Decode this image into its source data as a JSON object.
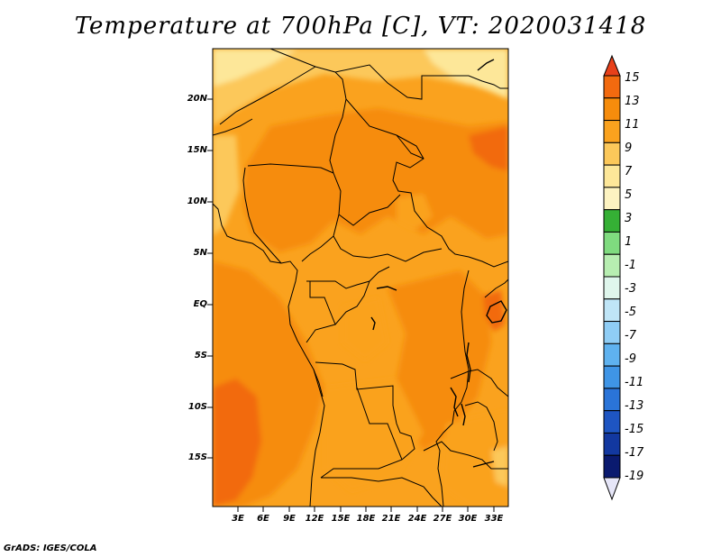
{
  "title": "Temperature at 700hPa [C], VT: 2020031418",
  "credit": "GrADS: IGES/COLA",
  "lat_labels": [
    "20N",
    "15N",
    "10N",
    "5N",
    "EQ",
    "5S",
    "10S",
    "15S"
  ],
  "lon_labels": [
    "3E",
    "6E",
    "9E",
    "12E",
    "15E",
    "18E",
    "21E",
    "24E",
    "27E",
    "30E",
    "33E"
  ],
  "colorbar": {
    "labels": [
      "15",
      "13",
      "11",
      "9",
      "7",
      "5",
      "3",
      "1",
      "-1",
      "-3",
      "-5",
      "-7",
      "-9",
      "-11",
      "-13",
      "-15",
      "-17",
      "-19"
    ],
    "colors": [
      "#e8401a",
      "#f26a0f",
      "#f68c0c",
      "#faa21e",
      "#fcc85a",
      "#fde799",
      "#fdf3c1",
      "#35b035",
      "#7fdb7f",
      "#b7eeb1",
      "#dff6ec",
      "#bfe5f7",
      "#8fcdf5",
      "#5fb2ef",
      "#3f95e6",
      "#2a74d8",
      "#1e55c2",
      "#1238a0",
      "#0a1a6f",
      "#e6e6f8"
    ]
  }
}
